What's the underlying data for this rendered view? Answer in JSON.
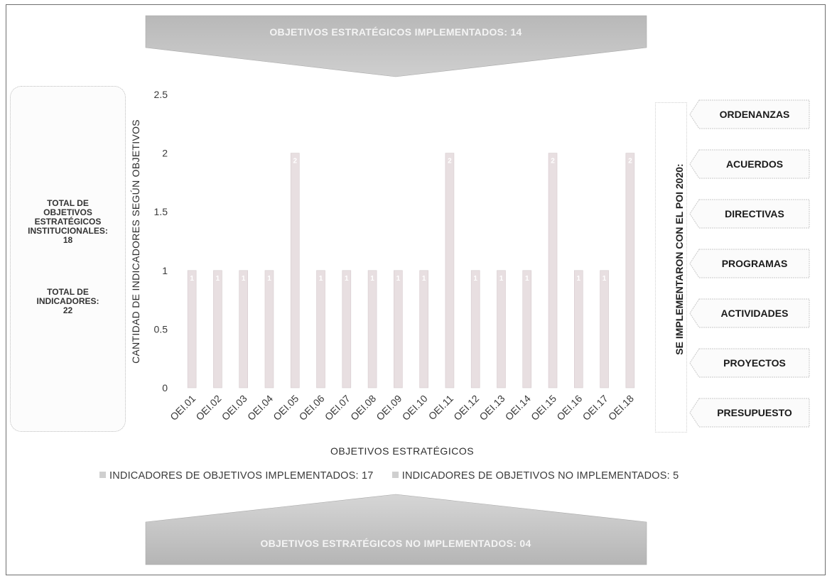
{
  "banner_top": {
    "text": "OBJETIVOS ESTRATÉGICOS IMPLEMENTADOS: 14"
  },
  "banner_bottom": {
    "text": "OBJETIVOS ESTRATÉGICOS NO IMPLEMENTADOS: 04"
  },
  "summary": {
    "objectives_lines": [
      "TOTAL DE",
      "OBJETIVOS",
      "ESTRATÉGICOS",
      "INSTITUCIONALES:",
      "18"
    ],
    "indicators_lines": [
      "TOTAL DE",
      "INDICADORES:",
      "22"
    ]
  },
  "instruments": {
    "title": "SE IMPLEMENTARON CON EL POI 2020:",
    "items": [
      "ORDENANZAS",
      "ACUERDOS",
      "DIRECTIVAS",
      "PROGRAMAS",
      "ACTIVIDADES",
      "PROYECTOS",
      "PRESUPUESTO"
    ]
  },
  "chart_data": {
    "type": "bar",
    "title": "",
    "xlabel": "OBJETIVOS ESTRATÉGICOS",
    "ylabel": "CANTIDAD DE INDICADORES SEGÚN OBJETIVOS",
    "ylim": [
      0,
      2.5
    ],
    "yticks": [
      "0",
      "0.5",
      "1",
      "1.5",
      "2",
      "2.5"
    ],
    "ytick_values": [
      0,
      0.5,
      1,
      1.5,
      2,
      2.5
    ],
    "categories": [
      "OEI.01",
      "OEI.02",
      "OEI.03",
      "OEI.04",
      "OEI.05",
      "OEI.06",
      "OEI.07",
      "OEI.08",
      "OEI.09",
      "OEI.10",
      "OEI.11",
      "OEI.12",
      "OEI.13",
      "OEI.14",
      "OEI.15",
      "OEI.16",
      "OEI.17",
      "OEI.18"
    ],
    "values": [
      1,
      1,
      1,
      1,
      2,
      1,
      1,
      1,
      1,
      1,
      2,
      1,
      1,
      1,
      2,
      1,
      1,
      2
    ],
    "data_labels": [
      "1",
      "1",
      "1",
      "1",
      "2",
      "1",
      "1",
      "1",
      "1",
      "1",
      "2",
      "1",
      "1",
      "1",
      "2",
      "1",
      "1",
      "2"
    ],
    "grid": false,
    "legend_position": "bottom",
    "legend": [
      "INDICADORES DE OBJETIVOS IMPLEMENTADOS: 17",
      "INDICADORES DE OBJETIVOS NO IMPLEMENTADOS: 5"
    ],
    "colors": {
      "bar": "#e8dfe1",
      "swatch": "#cfcfcf"
    }
  }
}
